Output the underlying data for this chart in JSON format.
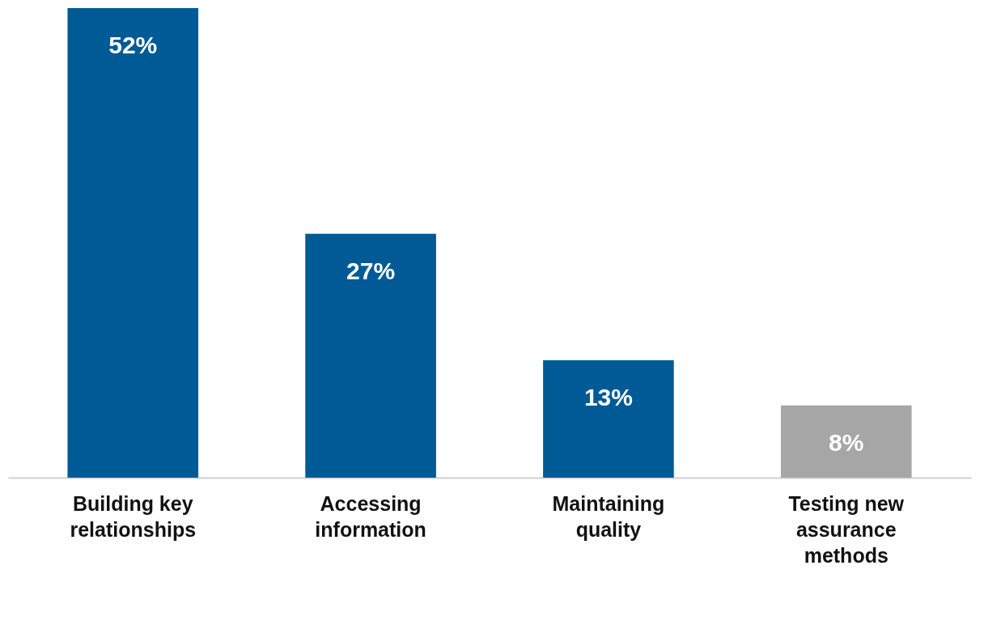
{
  "chart_data": {
    "type": "bar",
    "categories": [
      "Building key relationships",
      "Accessing information",
      "Maintaining quality",
      "Testing new assurance methods"
    ],
    "values": [
      52,
      27,
      13,
      8
    ],
    "value_labels": [
      "52%",
      "27%",
      "13%",
      "8%"
    ],
    "colors": [
      "#005a96",
      "#005a96",
      "#005a96",
      "#a6a6a6"
    ]
  }
}
